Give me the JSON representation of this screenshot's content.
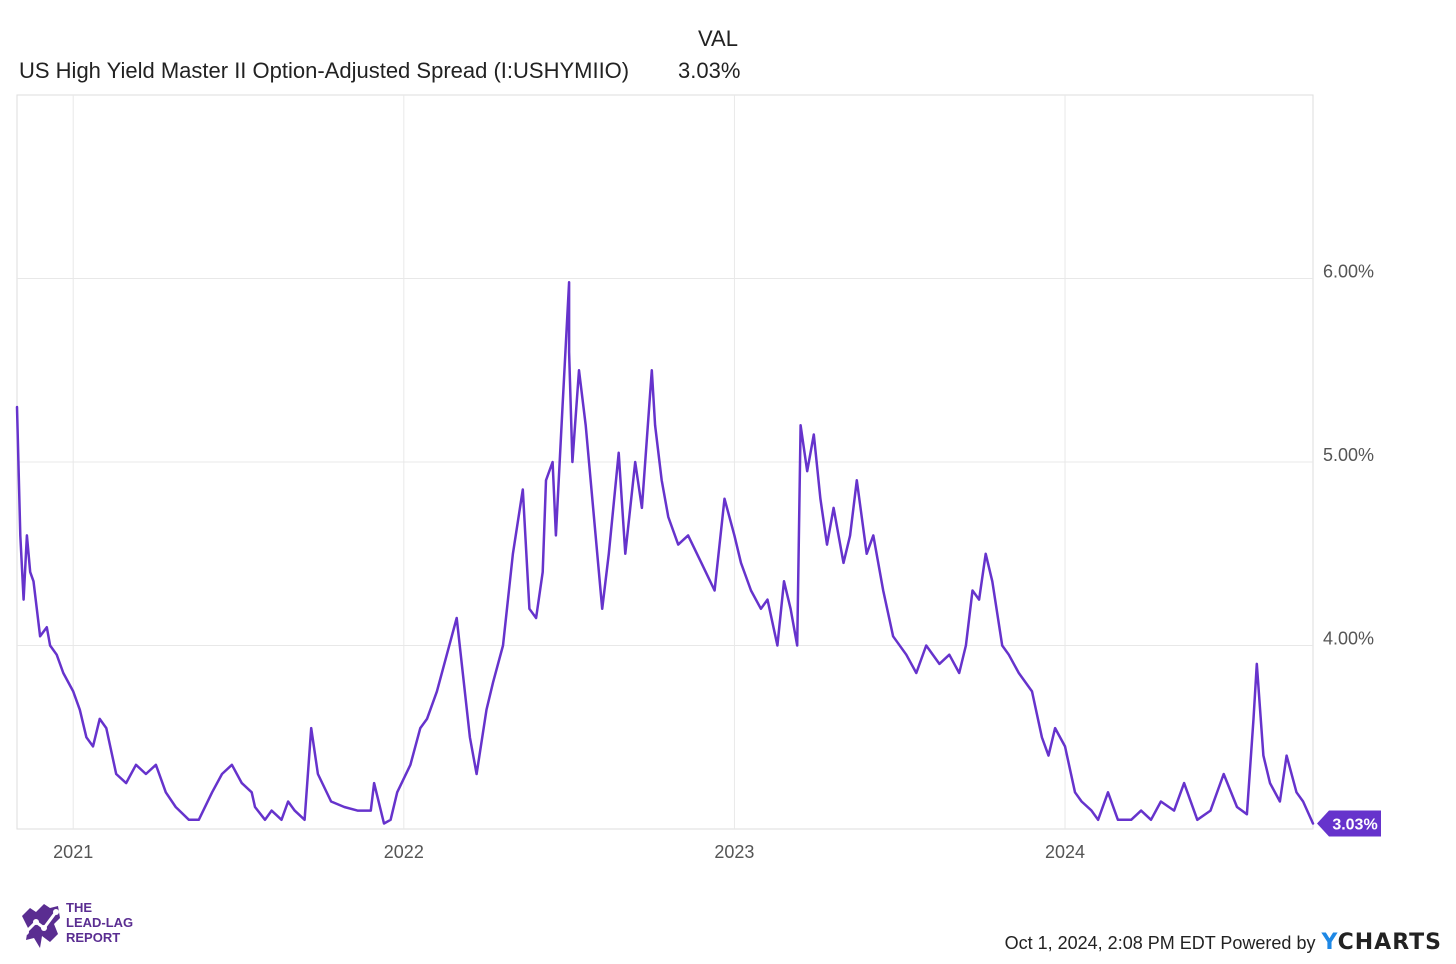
{
  "header": {
    "column_label": "VAL",
    "series_name": "US High Yield Master II Option-Adjusted Spread (I:USHYMIIO)",
    "series_value": "3.03%"
  },
  "chart_data": {
    "type": "line",
    "title": "US High Yield Master II Option-Adjusted Spread (I:USHYMIIO)",
    "xlabel": "",
    "ylabel": "",
    "ylim": [
      3.0,
      7.0
    ],
    "xlim": [
      2020.83,
      2024.75
    ],
    "grid": true,
    "x_ticks": [
      {
        "value": 2021,
        "label": "2021"
      },
      {
        "value": 2022,
        "label": "2022"
      },
      {
        "value": 2023,
        "label": "2023"
      },
      {
        "value": 2024,
        "label": "2024"
      }
    ],
    "y_ticks": [
      {
        "value": 4.0,
        "label": "4.00%"
      },
      {
        "value": 5.0,
        "label": "5.00%"
      },
      {
        "value": 6.0,
        "label": "6.00%"
      }
    ],
    "last_value_label": "3.03%",
    "series": [
      {
        "name": "US High Yield Master II Option-Adjusted Spread",
        "color": "#6633cc",
        "x": [
          2020.83,
          2020.84,
          2020.85,
          2020.86,
          2020.87,
          2020.88,
          2020.9,
          2020.92,
          2020.93,
          2020.95,
          2020.97,
          2021.0,
          2021.02,
          2021.04,
          2021.06,
          2021.08,
          2021.1,
          2021.13,
          2021.16,
          2021.19,
          2021.22,
          2021.25,
          2021.28,
          2021.31,
          2021.35,
          2021.38,
          2021.42,
          2021.45,
          2021.48,
          2021.51,
          2021.54,
          2021.55,
          2021.58,
          2021.6,
          2021.63,
          2021.65,
          2021.67,
          2021.7,
          2021.72,
          2021.74,
          2021.78,
          2021.82,
          2021.86,
          2021.9,
          2021.91,
          2021.94,
          2021.96,
          2021.98,
          2022.02,
          2022.05,
          2022.07,
          2022.1,
          2022.13,
          2022.16,
          2022.2,
          2022.22,
          2022.25,
          2022.27,
          2022.3,
          2022.33,
          2022.36,
          2022.38,
          2022.4,
          2022.42,
          2022.43,
          2022.45,
          2022.46,
          2022.48,
          2022.5,
          2022.5,
          2022.51,
          2022.53,
          2022.55,
          2022.58,
          2022.6,
          2022.62,
          2022.65,
          2022.67,
          2022.7,
          2022.72,
          2022.75,
          2022.76,
          2022.78,
          2022.8,
          2022.83,
          2022.86,
          2022.9,
          2022.94,
          2022.97,
          2023.0,
          2023.02,
          2023.05,
          2023.08,
          2023.1,
          2023.13,
          2023.15,
          2023.17,
          2023.19,
          2023.2,
          2023.22,
          2023.24,
          2023.26,
          2023.28,
          2023.3,
          2023.33,
          2023.35,
          2023.37,
          2023.4,
          2023.42,
          2023.45,
          2023.48,
          2023.52,
          2023.55,
          2023.58,
          2023.62,
          2023.65,
          2023.68,
          2023.7,
          2023.72,
          2023.74,
          2023.76,
          2023.78,
          2023.81,
          2023.83,
          2023.86,
          2023.9,
          2023.93,
          2023.95,
          2023.97,
          2024.0,
          2024.03,
          2024.05,
          2024.08,
          2024.1,
          2024.13,
          2024.16,
          2024.2,
          2024.23,
          2024.26,
          2024.29,
          2024.33,
          2024.36,
          2024.4,
          2024.44,
          2024.48,
          2024.52,
          2024.55,
          2024.57,
          2024.58,
          2024.6,
          2024.62,
          2024.65,
          2024.67,
          2024.7,
          2024.72,
          2024.75
        ],
        "values": [
          5.3,
          4.6,
          4.25,
          4.6,
          4.4,
          4.35,
          4.05,
          4.1,
          4.0,
          3.95,
          3.85,
          3.75,
          3.65,
          3.5,
          3.45,
          3.6,
          3.55,
          3.3,
          3.25,
          3.35,
          3.3,
          3.35,
          3.2,
          3.12,
          3.05,
          3.05,
          3.2,
          3.3,
          3.35,
          3.25,
          3.2,
          3.12,
          3.05,
          3.1,
          3.05,
          3.15,
          3.1,
          3.05,
          3.55,
          3.3,
          3.15,
          3.12,
          3.1,
          3.1,
          3.25,
          3.03,
          3.05,
          3.2,
          3.35,
          3.55,
          3.6,
          3.75,
          3.95,
          4.15,
          3.5,
          3.3,
          3.65,
          3.8,
          4.0,
          4.5,
          4.85,
          4.2,
          4.15,
          4.4,
          4.9,
          5.0,
          4.6,
          5.3,
          5.98,
          5.6,
          5.0,
          5.5,
          5.2,
          4.6,
          4.2,
          4.5,
          5.05,
          4.5,
          5.0,
          4.75,
          5.5,
          5.2,
          4.9,
          4.7,
          4.55,
          4.6,
          4.45,
          4.3,
          4.8,
          4.6,
          4.45,
          4.3,
          4.2,
          4.25,
          4.0,
          4.35,
          4.2,
          4.0,
          5.2,
          4.95,
          5.15,
          4.8,
          4.55,
          4.75,
          4.45,
          4.6,
          4.9,
          4.5,
          4.6,
          4.3,
          4.05,
          3.95,
          3.85,
          4.0,
          3.9,
          3.95,
          3.85,
          4.0,
          4.3,
          4.25,
          4.5,
          4.35,
          4.0,
          3.95,
          3.85,
          3.75,
          3.5,
          3.4,
          3.55,
          3.45,
          3.2,
          3.15,
          3.1,
          3.05,
          3.2,
          3.05,
          3.05,
          3.1,
          3.05,
          3.15,
          3.1,
          3.25,
          3.05,
          3.1,
          3.3,
          3.12,
          3.08,
          3.6,
          3.9,
          3.4,
          3.25,
          3.15,
          3.4,
          3.2,
          3.15,
          3.03
        ]
      }
    ]
  },
  "branding": {
    "logo_line1": "THE",
    "logo_line2": "LEAD-LAG",
    "logo_line3": "REPORT",
    "footer_text": "Oct 1, 2024, 2:08 PM EDT Powered by",
    "provider_y": "Y",
    "provider_rest": "CHARTS",
    "accent_color": "#6633cc"
  }
}
